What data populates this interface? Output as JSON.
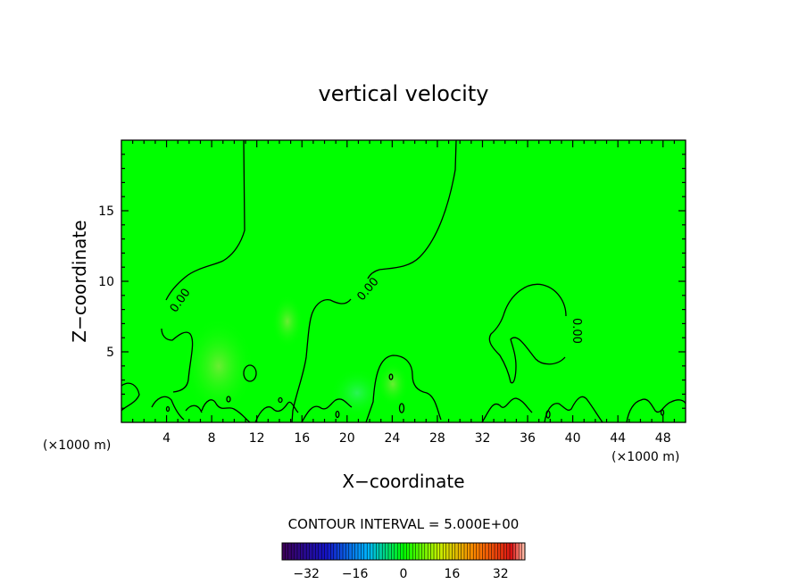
{
  "chart_data": {
    "type": "heatmap",
    "title": "vertical velocity",
    "xlabel": "X−coordinate",
    "ylabel": "Z−coordinate",
    "x_unit_left": "(×1000 m)",
    "x_unit_right": "(×1000 m)",
    "xlim": [
      0,
      50
    ],
    "ylim": [
      0,
      20
    ],
    "x_ticks": [
      4,
      8,
      12,
      16,
      20,
      24,
      28,
      32,
      36,
      40,
      44,
      48
    ],
    "x_tick_labels": [
      "4",
      "8",
      "12",
      "16",
      "20",
      "24",
      "28",
      "32",
      "36",
      "40",
      "44",
      "48"
    ],
    "y_ticks": [
      5,
      10,
      15
    ],
    "y_tick_labels": [
      "5",
      "10",
      "15"
    ],
    "contour_interval_text": "CONTOUR INTERVAL = 5.000E+00",
    "contour_labels": [
      "0.00",
      "0.00",
      "0.00"
    ],
    "colorbar": {
      "min": -40,
      "max": 40,
      "tick_values": [
        -32,
        -16,
        0,
        16,
        32
      ],
      "tick_labels": [
        "−32",
        "−16",
        "0",
        "16",
        "32"
      ]
    },
    "background_color": "#00ff00",
    "grid": false
  }
}
